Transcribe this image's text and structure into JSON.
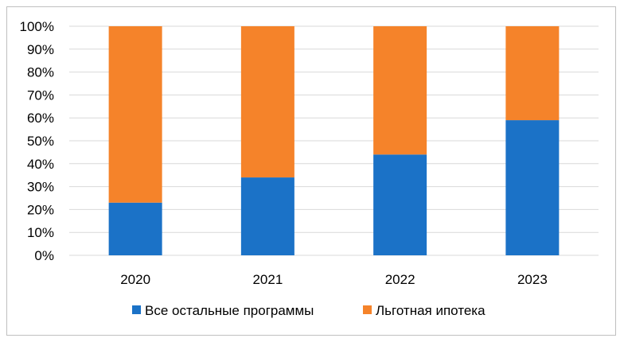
{
  "chart_data": {
    "type": "bar",
    "stacked": true,
    "categories": [
      "2020",
      "2021",
      "2022",
      "2023"
    ],
    "series": [
      {
        "name": "Все остальные программы",
        "values": [
          23,
          34,
          44,
          59
        ],
        "color": "#1b72c7"
      },
      {
        "name": "Льготная ипотека",
        "values": [
          77,
          66,
          56,
          41
        ],
        "color": "#f5832a"
      }
    ],
    "ylim": [
      0,
      100
    ],
    "yticks": [
      "0%",
      "10%",
      "20%",
      "30%",
      "40%",
      "50%",
      "60%",
      "70%",
      "80%",
      "90%",
      "100%"
    ],
    "grid": true,
    "legend_position": "bottom"
  }
}
